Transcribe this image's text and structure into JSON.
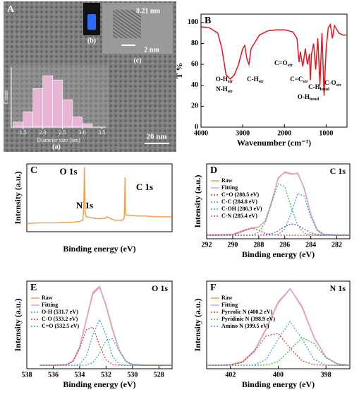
{
  "chart_data": [
    {
      "type": "histogram",
      "panel_label": "A",
      "annotations": [
        "(a)",
        "(b)",
        "(c)",
        "0.21 nm",
        "2 nm",
        "20 nm"
      ],
      "xlabel": "Diameter size (nm)",
      "ylabel": "Count",
      "bins": [
        1.25,
        1.5,
        1.75,
        2,
        2.25,
        2.5,
        2.75,
        3,
        3.25
      ],
      "values": [
        6,
        18,
        45,
        60,
        55,
        32,
        12,
        4
      ],
      "color": "#e9b4d6",
      "xlim": [
        1.2,
        3.6
      ],
      "ylim": [
        0,
        70
      ],
      "xticks": [
        1.5,
        {
          "value": 2,
          "label": "2.0"
        },
        2.5,
        {
          "value": 3,
          "label": "3.0"
        },
        3.5
      ]
    },
    {
      "type": "line",
      "panel_label": "B",
      "xlabel": "Wavenumber (cm⁻¹)",
      "ylabel": "T %",
      "xlim": [
        4000,
        500
      ],
      "ylim": [
        0,
        108
      ],
      "xticks": [
        4000,
        3000,
        2000,
        1000
      ],
      "yticks": [
        0,
        20,
        40,
        60,
        80,
        100
      ],
      "x": [
        4000,
        3800,
        3600,
        3500,
        3400,
        3300,
        3200,
        3100,
        3000,
        2950,
        2900,
        2850,
        2800,
        2600,
        2400,
        2200,
        2000,
        1800,
        1700,
        1650,
        1620,
        1560,
        1500,
        1450,
        1400,
        1380,
        1350,
        1300,
        1250,
        1200,
        1150,
        1100,
        1050,
        1000,
        950,
        900,
        850,
        800,
        700,
        600,
        500
      ],
      "series": [
        {
          "color": "#e8141c",
          "values": [
            96,
            95,
            90,
            75,
            50,
            46,
            50,
            60,
            75,
            78,
            65,
            60,
            75,
            88,
            92,
            93,
            93,
            91,
            85,
            62,
            72,
            58,
            75,
            60,
            70,
            45,
            70,
            80,
            55,
            85,
            40,
            90,
            30,
            75,
            95,
            98,
            85,
            97,
            90,
            88,
            88
          ]
        }
      ],
      "annotations": [
        {
          "text": "O-H",
          "sub": "str"
        },
        {
          "text": "N-H",
          "sub": "str"
        },
        {
          "text": "C-H",
          "sub": "str"
        },
        {
          "text": "C=O",
          "sub": "str"
        },
        {
          "text": "C=C",
          "sub": "str"
        },
        {
          "text": "C-H",
          "sub": "bend"
        },
        {
          "text": "O-H",
          "sub": "bend"
        },
        {
          "text": "C-O",
          "sub": "str"
        }
      ]
    },
    {
      "type": "line",
      "panel_label": "C",
      "xlabel": "Binding energy (eV)",
      "ylabel": "Intensity (a.u.)",
      "xlim": [
        880,
        0
      ],
      "ylim": [
        0,
        100
      ],
      "x": [
        880,
        800,
        700,
        600,
        560,
        540,
        535,
        531,
        527,
        520,
        500,
        450,
        400,
        395,
        350,
        300,
        290,
        287,
        285,
        283,
        280,
        250,
        200,
        150,
        100,
        50,
        5
      ],
      "series": [
        {
          "color": "#f0a050",
          "values": [
            12,
            13,
            13,
            14,
            15,
            17,
            40,
            95,
            30,
            22,
            21,
            19,
            20,
            22,
            17,
            17,
            20,
            50,
            80,
            35,
            25,
            24,
            23,
            23,
            22,
            22,
            22
          ]
        }
      ],
      "annotations": [
        "O 1s",
        "N 1s",
        "C 1s"
      ]
    },
    {
      "type": "line",
      "panel_label": "D",
      "peak_label": "C 1s",
      "xlabel": "Binding energy (eV)",
      "ylabel": "Intensity (a.u.)",
      "xlim": [
        292,
        281
      ],
      "ylim": [
        -5,
        100
      ],
      "xticks": [
        292,
        290,
        288,
        286,
        284,
        282
      ],
      "x": [
        292,
        291,
        290,
        289,
        288.5,
        288,
        287.5,
        287,
        286.5,
        286,
        285.5,
        285,
        284.5,
        284,
        283.5,
        283,
        282,
        281
      ],
      "series": [
        {
          "name": "Raw",
          "color": "#f0a040",
          "values": [
            0.5,
            0.8,
            1.2,
            7.8,
            10.1,
            11.5,
            19.5,
            47,
            80.5,
            88,
            85.5,
            87,
            65,
            29.8,
            7.5,
            1.2,
            0.4,
            0.3
          ]
        },
        {
          "name": "Fitting",
          "color": "#d9a0e6",
          "values": [
            0,
            0,
            0.4,
            7.1,
            10.5,
            11.1,
            20.2,
            48.2,
            79.3,
            88.9,
            86.3,
            86.2,
            66,
            29.3,
            6.9,
            0.9,
            0,
            0
          ]
        },
        {
          "name": "C=O (288.5 eV)",
          "color": "#e03030",
          "dash": "dotted",
          "values": [
            0,
            0,
            0.4,
            7.1,
            10,
            7.1,
            2.5,
            0.4,
            0,
            0,
            0,
            0,
            0,
            0,
            0,
            0,
            0,
            0
          ]
        },
        {
          "name": "C-C (284.8 eV)",
          "color": "#3399dd",
          "dash": "dotted",
          "values": [
            0,
            0,
            0,
            0,
            0,
            0,
            0,
            0.1,
            1.1,
            8.4,
            31.4,
            58.7,
            54.7,
            25.5,
            5.9,
            0.7,
            0,
            0
          ]
        },
        {
          "name": "C-OH (286.3 eV)",
          "color": "#33bb33",
          "dash": "dotted",
          "values": [
            0,
            0,
            0,
            0,
            0.5,
            3.9,
            17.2,
            45.5,
            72,
            68.4,
            39,
            13.4,
            2.8,
            0.3,
            0,
            0,
            0,
            0
          ]
        },
        {
          "name": "C-N (285.4 eV)",
          "color": "#aa33cc",
          "dash": "dotted",
          "values": [
            0,
            0,
            0,
            0,
            0,
            0.1,
            0.5,
            2.2,
            6.2,
            12.1,
            15.9,
            14.1,
            8.5,
            3.5,
            1,
            0.2,
            0,
            0
          ]
        }
      ]
    },
    {
      "type": "line",
      "panel_label": "E",
      "peak_label": "O 1s",
      "xlabel": "Binding energy (eV)",
      "ylabel": "Intensity (a.u.)",
      "xlim": [
        538,
        527
      ],
      "ylim": [
        -5,
        125
      ],
      "xticks": [
        538,
        536,
        534,
        532,
        530,
        528
      ],
      "x": [
        537,
        536,
        535,
        534.5,
        534,
        533.5,
        533,
        532.5,
        532,
        531.5,
        531,
        530.5,
        530,
        529,
        528,
        527
      ],
      "series": [
        {
          "name": "Raw",
          "color": "#f0a040",
          "values": [
            0.3,
            0.5,
            1.2,
            6.5,
            27.5,
            68,
            108,
            117,
            88,
            52,
            22,
            6.5,
            1.5,
            0.5,
            0.3,
            0.2
          ]
        },
        {
          "name": "Fitting",
          "color": "#d9a0e6",
          "values": [
            0,
            0,
            0.7,
            5.8,
            26.3,
            66.5,
            105.8,
            115.7,
            90.1,
            53.9,
            23,
            5.8,
            0.8,
            0,
            0,
            0
          ]
        },
        {
          "name": "O-H (531.7 eV)",
          "color": "#2aa6a6",
          "dash": "dotted",
          "values": [
            0,
            0,
            0,
            0,
            0,
            0.5,
            4,
            17.3,
            37,
            39.7,
            21.3,
            5.7,
            0.8,
            0,
            0,
            0
          ]
        },
        {
          "name": "C-O (533.2 eV)",
          "color": "#e03030",
          "dash": "dotted",
          "values": [
            0,
            0,
            0.7,
            5.7,
            24.7,
            52.9,
            56.8,
            30.4,
            8.1,
            1.1,
            0.1,
            0,
            0,
            0,
            0,
            0
          ]
        },
        {
          "name": "C=O (532.5 eV)",
          "color": "#3399dd",
          "dash": "dotted",
          "values": [
            0,
            0,
            0,
            0.1,
            1.6,
            13.1,
            45,
            68,
            45,
            13.1,
            1.6,
            0.1,
            0,
            0,
            0,
            0
          ]
        }
      ]
    },
    {
      "type": "line",
      "panel_label": "F",
      "peak_label": "N 1s",
      "xlabel": "Binding energy (eV)",
      "ylabel": "Intensity (a.u.)",
      "xlim": [
        403,
        397
      ],
      "ylim": [
        -5,
        125
      ],
      "xticks": [
        402,
        400,
        398
      ],
      "x": [
        403,
        402.5,
        402,
        401.5,
        401,
        400.5,
        400,
        399.5,
        399,
        398.5,
        398,
        397.5,
        397
      ],
      "series": [
        {
          "name": "Raw",
          "color": "#f0a040",
          "values": [
            0.3,
            0.5,
            1.2,
            5.5,
            22,
            55,
            94,
            114,
            86,
            41,
            12,
            2,
            0.5
          ]
        },
        {
          "name": "Fitting",
          "color": "#d9a0e6",
          "values": [
            0,
            0,
            0.6,
            4.8,
            21.3,
            53.5,
            92.5,
            113.5,
            87.6,
            42,
            11.8,
            1.6,
            0.1
          ]
        },
        {
          "name": "Pyrrolic N (400.2 eV)",
          "color": "#e03030",
          "dash": "dotted",
          "values": [
            0,
            0,
            0.6,
            4.8,
            20.6,
            44.1,
            47.3,
            25.3,
            6.8,
            0.9,
            0.1,
            0,
            0
          ]
        },
        {
          "name": "Pyridinic N (398.9 eV)",
          "color": "#33bb33",
          "dash": "dotted",
          "values": [
            0,
            0,
            0,
            0,
            0,
            0.6,
            5.7,
            23.2,
            41.3,
            32.3,
            11,
            1.6,
            0.1
          ]
        },
        {
          "name": "Amino N (399.5 eV)",
          "color": "#3399dd",
          "dash": "dotted",
          "values": [
            0,
            0,
            0,
            0,
            0.7,
            8.8,
            39.5,
            65,
            39.5,
            8.8,
            0.7,
            0,
            0
          ]
        }
      ]
    }
  ]
}
